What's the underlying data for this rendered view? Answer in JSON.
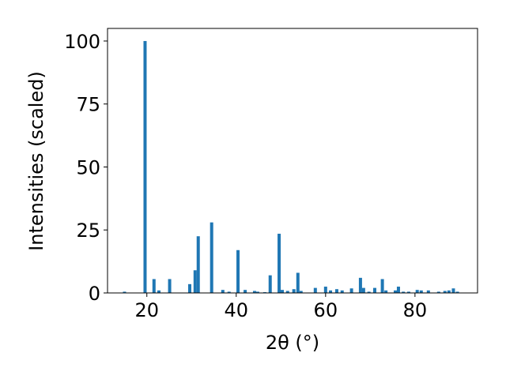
{
  "chart_data": {
    "type": "bar",
    "xlabel": "2θ (°)",
    "ylabel": "Intensities (scaled)",
    "x": [
      15.0,
      19.6,
      21.6,
      22.7,
      25.1,
      29.6,
      30.8,
      31.5,
      34.5,
      37.0,
      38.4,
      40.4,
      42.0,
      44.1,
      44.8,
      46.4,
      47.6,
      49.6,
      50.3,
      51.5,
      52.9,
      53.8,
      54.5,
      57.7,
      60.0,
      61.1,
      62.5,
      63.7,
      65.8,
      67.8,
      68.5,
      69.7,
      71.0,
      72.7,
      73.5,
      75.6,
      76.3,
      77.4,
      78.6,
      80.5,
      81.4,
      83.0,
      85.3,
      86.7,
      87.6,
      88.6,
      89.5
    ],
    "values": [
      0.5,
      100,
      5.5,
      1,
      5.5,
      3.5,
      9,
      22.5,
      28,
      1.2,
      0.5,
      17,
      1.2,
      0.8,
      0.5,
      0.3,
      7,
      23.5,
      1.2,
      0.8,
      1.5,
      8,
      0.8,
      2,
      2.5,
      1,
      1.5,
      1,
      1.8,
      6,
      2,
      0.5,
      2,
      5.5,
      1,
      1,
      2.5,
      0.5,
      0.5,
      1.2,
      1,
      1,
      0.5,
      0.8,
      1,
      1.8,
      0.5
    ],
    "color": "#1f77b4",
    "xlim": [
      11.2,
      94.0
    ],
    "xticks": [
      20,
      40,
      60,
      80
    ],
    "ylim": [
      0,
      105
    ],
    "yticks": [
      0,
      25,
      50,
      75,
      100
    ],
    "grid": false
  }
}
